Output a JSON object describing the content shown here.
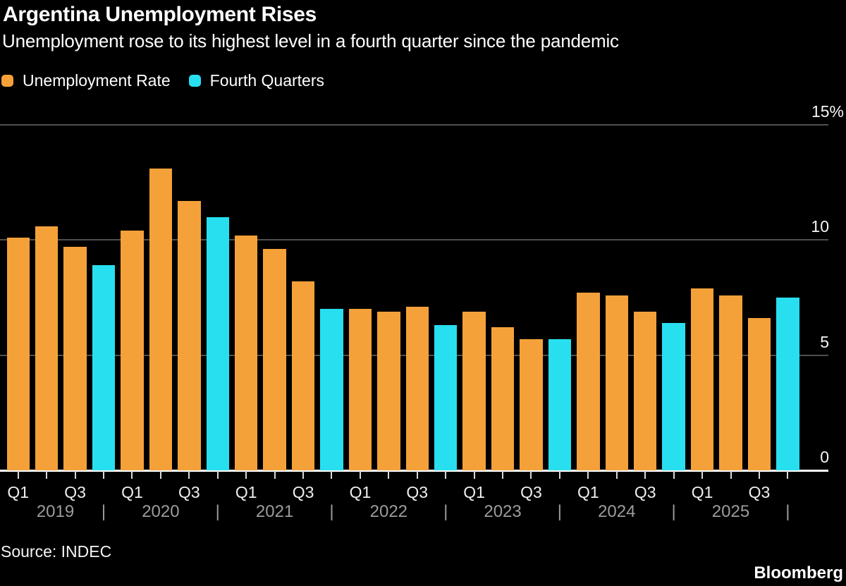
{
  "header": {
    "title": "Argentina Unemployment Rises",
    "subtitle": "Unemployment rose to its highest level in a fourth quarter since the pandemic"
  },
  "colors": {
    "background": "#000000",
    "unemployment_rate": "#F5A13A",
    "fourth_quarters": "#28DFF0",
    "gridline": "#4F4F4F",
    "baseline": "#FFFFFF",
    "year_text": "#9C9C9C"
  },
  "legend": {
    "items": [
      {
        "label": "Unemployment Rate",
        "color": "#F5A13A"
      },
      {
        "label": "Fourth Quarters",
        "color": "#28DFF0"
      }
    ]
  },
  "chart_data": {
    "type": "bar",
    "title": "Argentina Unemployment Rises",
    "subtitle": "Unemployment rose to its highest level in a fourth quarter since the pandemic",
    "unit": "%",
    "ylim": [
      0,
      15
    ],
    "grid": "horizontal",
    "legend_position": "top-left",
    "y_axis": {
      "ticks": [
        {
          "value": 15,
          "label": "15%"
        },
        {
          "value": 10,
          "label": "10"
        },
        {
          "value": 5,
          "label": "5"
        },
        {
          "value": 0,
          "label": "0"
        }
      ]
    },
    "x_axis": {
      "years": [
        "2019",
        "2020",
        "2021",
        "2022",
        "2023",
        "2024",
        "2025"
      ],
      "quarter_tick_labels": [
        "Q1",
        "Q3"
      ],
      "year_separator": "|"
    },
    "series": [
      {
        "name": "Unemployment Rate",
        "color": "#F5A13A"
      },
      {
        "name": "Fourth Quarters",
        "color": "#28DFF0"
      }
    ],
    "points": [
      {
        "quarter": "Q1",
        "year": "2019",
        "value": 10.1,
        "series": 0
      },
      {
        "quarter": "Q2",
        "year": "2019",
        "value": 10.6,
        "series": 0
      },
      {
        "quarter": "Q3",
        "year": "2019",
        "value": 9.7,
        "series": 0
      },
      {
        "quarter": "Q4",
        "year": "2019",
        "value": 8.9,
        "series": 1
      },
      {
        "quarter": "Q1",
        "year": "2020",
        "value": 10.4,
        "series": 0
      },
      {
        "quarter": "Q2",
        "year": "2020",
        "value": 13.1,
        "series": 0
      },
      {
        "quarter": "Q3",
        "year": "2020",
        "value": 11.7,
        "series": 0
      },
      {
        "quarter": "Q4",
        "year": "2020",
        "value": 11.0,
        "series": 1
      },
      {
        "quarter": "Q1",
        "year": "2021",
        "value": 10.2,
        "series": 0
      },
      {
        "quarter": "Q2",
        "year": "2021",
        "value": 9.6,
        "series": 0
      },
      {
        "quarter": "Q3",
        "year": "2021",
        "value": 8.2,
        "series": 0
      },
      {
        "quarter": "Q4",
        "year": "2021",
        "value": 7.0,
        "series": 1
      },
      {
        "quarter": "Q1",
        "year": "2022",
        "value": 7.0,
        "series": 0
      },
      {
        "quarter": "Q2",
        "year": "2022",
        "value": 6.9,
        "series": 0
      },
      {
        "quarter": "Q3",
        "year": "2022",
        "value": 7.1,
        "series": 0
      },
      {
        "quarter": "Q4",
        "year": "2022",
        "value": 6.3,
        "series": 1
      },
      {
        "quarter": "Q1",
        "year": "2023",
        "value": 6.9,
        "series": 0
      },
      {
        "quarter": "Q2",
        "year": "2023",
        "value": 6.2,
        "series": 0
      },
      {
        "quarter": "Q3",
        "year": "2023",
        "value": 5.7,
        "series": 0
      },
      {
        "quarter": "Q4",
        "year": "2023",
        "value": 5.7,
        "series": 1
      },
      {
        "quarter": "Q1",
        "year": "2024",
        "value": 7.7,
        "series": 0
      },
      {
        "quarter": "Q2",
        "year": "2024",
        "value": 7.6,
        "series": 0
      },
      {
        "quarter": "Q3",
        "year": "2024",
        "value": 6.9,
        "series": 0
      },
      {
        "quarter": "Q4",
        "year": "2024",
        "value": 6.4,
        "series": 1
      },
      {
        "quarter": "Q1",
        "year": "2025",
        "value": 7.9,
        "series": 0
      },
      {
        "quarter": "Q2",
        "year": "2025",
        "value": 7.6,
        "series": 0
      },
      {
        "quarter": "Q3",
        "year": "2025",
        "value": 6.6,
        "series": 0
      },
      {
        "quarter": "Q4",
        "year": "2025",
        "value": 7.5,
        "series": 1
      }
    ]
  },
  "footer": {
    "source": "Source: INDEC",
    "brand": "Bloomberg"
  }
}
